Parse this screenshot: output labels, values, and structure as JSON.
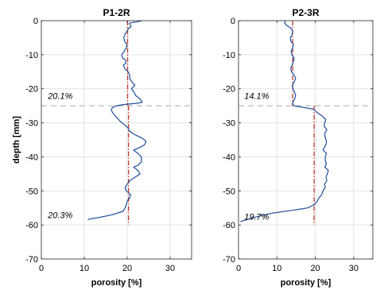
{
  "chart_data": [
    {
      "type": "line",
      "title": "P1-2R",
      "xlabel": "porosity [%]",
      "ylabel": "depth [mm]",
      "xlim": [
        0,
        35
      ],
      "ylim": [
        -70,
        0
      ],
      "xticks": [
        0,
        10,
        20,
        30
      ],
      "yticks": [
        0,
        -10,
        -20,
        -30,
        -40,
        -50,
        -60,
        -70
      ],
      "grid": true,
      "profile": {
        "color": "#1f4e9c",
        "points": [
          [
            23.3,
            0
          ],
          [
            22.5,
            -0.3
          ],
          [
            21.3,
            -0.5
          ],
          [
            20.5,
            -0.8
          ],
          [
            20.7,
            -1.2
          ],
          [
            20.9,
            -1.8
          ],
          [
            20.3,
            -2.3
          ],
          [
            20.0,
            -3
          ],
          [
            19.5,
            -4
          ],
          [
            19.2,
            -5
          ],
          [
            19.4,
            -6
          ],
          [
            19.9,
            -7
          ],
          [
            19.8,
            -8
          ],
          [
            19.3,
            -9
          ],
          [
            18.7,
            -10
          ],
          [
            18.9,
            -11
          ],
          [
            19.6,
            -11.5
          ],
          [
            19.7,
            -12.5
          ],
          [
            19.1,
            -13
          ],
          [
            19.4,
            -14
          ],
          [
            20.2,
            -15
          ],
          [
            20.6,
            -16
          ],
          [
            20.6,
            -17
          ],
          [
            21.1,
            -18
          ],
          [
            21.8,
            -19
          ],
          [
            21.0,
            -20
          ],
          [
            21.6,
            -21
          ],
          [
            22.0,
            -22
          ],
          [
            23.0,
            -23
          ],
          [
            23.5,
            -24
          ],
          [
            22.0,
            -24.3
          ],
          [
            19.5,
            -24.6
          ],
          [
            17.5,
            -25
          ],
          [
            16.5,
            -25.6
          ],
          [
            16.3,
            -26.2
          ],
          [
            16.6,
            -27
          ],
          [
            17.0,
            -27.7
          ],
          [
            17.5,
            -28.3
          ],
          [
            18.3,
            -29.5
          ],
          [
            19.3,
            -30.5
          ],
          [
            20.2,
            -31.5
          ],
          [
            20.6,
            -32.5
          ],
          [
            21.8,
            -33.5
          ],
          [
            23.5,
            -34.5
          ],
          [
            24.4,
            -35.5
          ],
          [
            24.0,
            -36.5
          ],
          [
            22.5,
            -37.5
          ],
          [
            21.5,
            -38
          ],
          [
            22.5,
            -39
          ],
          [
            23.3,
            -40
          ],
          [
            23.3,
            -41.5
          ],
          [
            22.5,
            -42.5
          ],
          [
            21.5,
            -43
          ],
          [
            22.5,
            -44
          ],
          [
            23.0,
            -45
          ],
          [
            21.8,
            -46
          ],
          [
            20.6,
            -47
          ],
          [
            20.0,
            -48
          ],
          [
            19.5,
            -49
          ],
          [
            19.8,
            -50
          ],
          [
            20.8,
            -51
          ],
          [
            20.6,
            -52
          ],
          [
            20.0,
            -53
          ],
          [
            19.8,
            -54
          ],
          [
            19.5,
            -55
          ],
          [
            19.0,
            -56
          ],
          [
            16.5,
            -57
          ],
          [
            13.5,
            -57.8
          ],
          [
            11.5,
            -58.2
          ],
          [
            10.8,
            -58.4
          ]
        ]
      },
      "mean_lines": [
        {
          "x": 20.1,
          "from": 0,
          "to": -25,
          "color": "#c0392b"
        },
        {
          "x": 20.3,
          "from": -25,
          "to": -60,
          "color": "#c0392b"
        }
      ],
      "boundary_depth": -25,
      "annotations": [
        {
          "text": "20.1%",
          "x": 1.5,
          "y": -23
        },
        {
          "text": "20.3%",
          "x": 1.5,
          "y": -58
        }
      ]
    },
    {
      "type": "line",
      "title": "P2-3R",
      "xlabel": "porosity [%]",
      "ylabel": "",
      "xlim": [
        0,
        35
      ],
      "ylim": [
        -70,
        0
      ],
      "xticks": [
        0,
        10,
        20,
        30
      ],
      "yticks": [
        0,
        -10,
        -20,
        -30,
        -40,
        -50,
        -60,
        -70
      ],
      "grid": true,
      "profile": {
        "color": "#1f4e9c",
        "points": [
          [
            12.1,
            0
          ],
          [
            12.1,
            -0.8
          ],
          [
            12.7,
            -1.5
          ],
          [
            13.6,
            -2.2
          ],
          [
            14.1,
            -3
          ],
          [
            14.0,
            -4
          ],
          [
            13.5,
            -5
          ],
          [
            13.6,
            -6
          ],
          [
            14.3,
            -7
          ],
          [
            14.1,
            -8
          ],
          [
            13.7,
            -9
          ],
          [
            13.9,
            -10
          ],
          [
            14.5,
            -11
          ],
          [
            14.3,
            -12
          ],
          [
            14.0,
            -13
          ],
          [
            13.6,
            -14
          ],
          [
            13.8,
            -15
          ],
          [
            14.5,
            -16
          ],
          [
            14.9,
            -17
          ],
          [
            14.5,
            -18
          ],
          [
            14.0,
            -19
          ],
          [
            14.2,
            -20
          ],
          [
            14.6,
            -21
          ],
          [
            14.9,
            -22
          ],
          [
            14.6,
            -23
          ],
          [
            14.1,
            -24
          ],
          [
            14.3,
            -25
          ],
          [
            17.0,
            -25.5
          ],
          [
            19.5,
            -26
          ],
          [
            20.5,
            -27
          ],
          [
            21.8,
            -28
          ],
          [
            22.7,
            -29
          ],
          [
            22.5,
            -30
          ],
          [
            22.3,
            -31
          ],
          [
            23.0,
            -32
          ],
          [
            22.5,
            -33
          ],
          [
            22.5,
            -34
          ],
          [
            22.8,
            -35
          ],
          [
            22.9,
            -36
          ],
          [
            22.5,
            -37
          ],
          [
            22.0,
            -38
          ],
          [
            22.9,
            -39
          ],
          [
            22.6,
            -40
          ],
          [
            22.6,
            -41
          ],
          [
            22.9,
            -42
          ],
          [
            22.5,
            -43
          ],
          [
            23.4,
            -44
          ],
          [
            23.1,
            -45
          ],
          [
            22.8,
            -46
          ],
          [
            23.0,
            -47
          ],
          [
            22.4,
            -48
          ],
          [
            22.6,
            -49
          ],
          [
            22.0,
            -50
          ],
          [
            21.7,
            -51
          ],
          [
            21.0,
            -52
          ],
          [
            20.5,
            -53
          ],
          [
            19.8,
            -54
          ],
          [
            18.0,
            -55
          ],
          [
            14.0,
            -55.7
          ],
          [
            9.0,
            -56.5
          ],
          [
            5.0,
            -57.5
          ],
          [
            2.0,
            -58.5
          ],
          [
            0.5,
            -59
          ]
        ]
      },
      "mean_lines": [
        {
          "x": 14.1,
          "from": 0,
          "to": -25,
          "color": "#c0392b"
        },
        {
          "x": 19.7,
          "from": -25,
          "to": -60,
          "color": "#c0392b"
        }
      ],
      "boundary_depth": -25,
      "annotations": [
        {
          "text": "14.1%",
          "x": 1.5,
          "y": -23
        },
        {
          "text": "19.7%",
          "x": 1.5,
          "y": -58.5
        }
      ]
    }
  ]
}
